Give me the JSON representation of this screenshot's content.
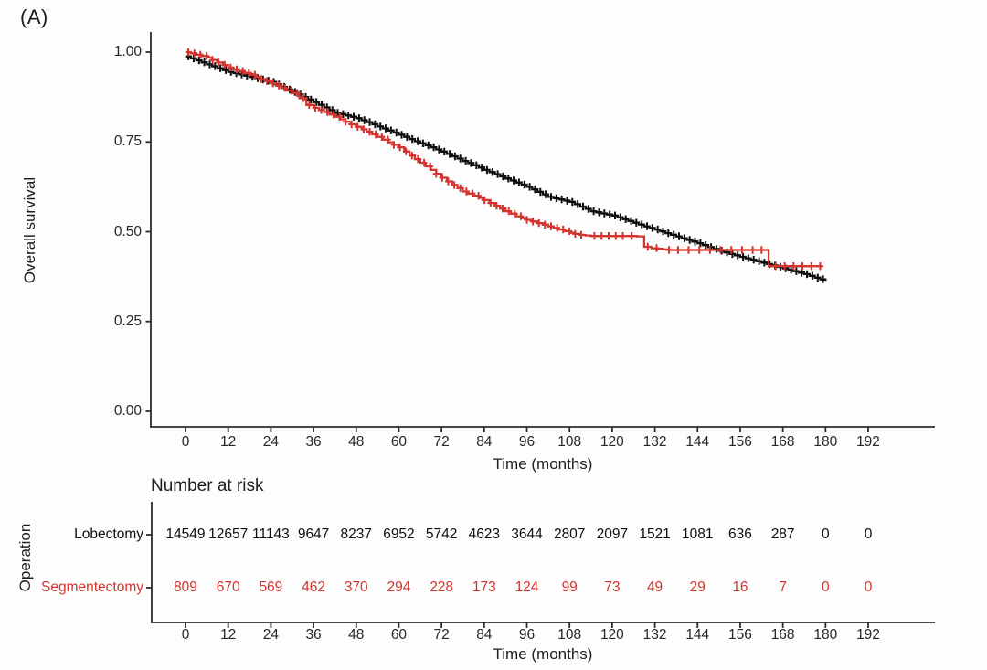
{
  "panel_label": "(A)",
  "colors": {
    "lobectomy": "#0e0e0e",
    "segmentectomy": "#d4342e",
    "axis": "#2c2c2c",
    "text": "#1e1e1e"
  },
  "chart_data": {
    "type": "line",
    "subtype": "kaplan_meier_step",
    "title": "",
    "xlabel": "Time (months)",
    "ylabel": "Overall survival",
    "xlim": [
      0,
      192
    ],
    "ylim": [
      0.0,
      1.0
    ],
    "grid": false,
    "legend_position": "none",
    "xticks": [
      0,
      12,
      24,
      36,
      48,
      60,
      72,
      84,
      96,
      108,
      120,
      132,
      144,
      156,
      168,
      180,
      192
    ],
    "yticks": [
      "0.00",
      "0.25",
      "0.50",
      "0.75",
      "1.00"
    ],
    "series": [
      {
        "name": "Lobectomy",
        "color": "#0e0e0e",
        "points": [
          [
            0,
            0.988
          ],
          [
            3,
            0.977
          ],
          [
            6,
            0.966
          ],
          [
            9,
            0.955
          ],
          [
            12,
            0.945
          ],
          [
            15,
            0.938
          ],
          [
            18,
            0.931
          ],
          [
            21,
            0.924
          ],
          [
            24,
            0.917
          ],
          [
            27,
            0.903
          ],
          [
            30,
            0.889
          ],
          [
            33,
            0.875
          ],
          [
            36,
            0.861
          ],
          [
            39,
            0.846
          ],
          [
            42,
            0.831
          ],
          [
            45,
            0.824
          ],
          [
            48,
            0.816
          ],
          [
            51,
            0.805
          ],
          [
            54,
            0.793
          ],
          [
            57,
            0.782
          ],
          [
            60,
            0.77
          ],
          [
            63,
            0.758
          ],
          [
            66,
            0.746
          ],
          [
            69,
            0.735
          ],
          [
            72,
            0.723
          ],
          [
            75,
            0.71
          ],
          [
            78,
            0.697
          ],
          [
            81,
            0.685
          ],
          [
            84,
            0.672
          ],
          [
            87,
            0.66
          ],
          [
            90,
            0.648
          ],
          [
            93,
            0.637
          ],
          [
            96,
            0.625
          ],
          [
            99,
            0.611
          ],
          [
            102,
            0.597
          ],
          [
            105,
            0.59
          ],
          [
            108,
            0.583
          ],
          [
            111,
            0.57
          ],
          [
            114,
            0.557
          ],
          [
            117,
            0.551
          ],
          [
            120,
            0.545
          ],
          [
            123,
            0.535
          ],
          [
            126,
            0.525
          ],
          [
            129,
            0.515
          ],
          [
            132,
            0.506
          ],
          [
            135,
            0.496
          ],
          [
            138,
            0.487
          ],
          [
            141,
            0.477
          ],
          [
            144,
            0.468
          ],
          [
            147,
            0.457
          ],
          [
            150,
            0.447
          ],
          [
            153,
            0.438
          ],
          [
            156,
            0.43
          ],
          [
            159,
            0.422
          ],
          [
            162,
            0.414
          ],
          [
            165,
            0.406
          ],
          [
            168,
            0.398
          ],
          [
            171,
            0.39
          ],
          [
            174,
            0.382
          ],
          [
            177,
            0.372
          ],
          [
            180,
            0.363
          ]
        ],
        "censor": {
          "start": 0.8,
          "end": 179.4,
          "step": 1.5,
          "extra": []
        }
      },
      {
        "name": "Segmentectomy",
        "color": "#d4342e",
        "points": [
          [
            0,
            1.0
          ],
          [
            3,
            0.993
          ],
          [
            6,
            0.985
          ],
          [
            9,
            0.971
          ],
          [
            12,
            0.957
          ],
          [
            15,
            0.947
          ],
          [
            18,
            0.937
          ],
          [
            21,
            0.925
          ],
          [
            24,
            0.913
          ],
          [
            27,
            0.9
          ],
          [
            30,
            0.886
          ],
          [
            32,
            0.872
          ],
          [
            34,
            0.853
          ],
          [
            36,
            0.845
          ],
          [
            39,
            0.833
          ],
          [
            42,
            0.82
          ],
          [
            45,
            0.806
          ],
          [
            48,
            0.792
          ],
          [
            51,
            0.778
          ],
          [
            54,
            0.764
          ],
          [
            57,
            0.749
          ],
          [
            60,
            0.735
          ],
          [
            63,
            0.712
          ],
          [
            66,
            0.692
          ],
          [
            69,
            0.672
          ],
          [
            72,
            0.65
          ],
          [
            75,
            0.63
          ],
          [
            78,
            0.612
          ],
          [
            81,
            0.6
          ],
          [
            84,
            0.588
          ],
          [
            87,
            0.572
          ],
          [
            90,
            0.557
          ],
          [
            93,
            0.543
          ],
          [
            96,
            0.533
          ],
          [
            99,
            0.524
          ],
          [
            102,
            0.515
          ],
          [
            105,
            0.506
          ],
          [
            108,
            0.497
          ],
          [
            111,
            0.491
          ],
          [
            114,
            0.488
          ],
          [
            127,
            0.487
          ],
          [
            129,
            0.458
          ],
          [
            131,
            0.454
          ],
          [
            136,
            0.449
          ],
          [
            163,
            0.449
          ],
          [
            164,
            0.404
          ],
          [
            179,
            0.404
          ]
        ],
        "censor": {
          "start": 0.8,
          "end": 112,
          "step": 1.7,
          "extra": [
            115,
            117,
            119,
            121,
            123,
            125.5,
            130,
            132.5,
            136,
            138.5,
            141.5,
            144.5,
            147.5,
            150.5,
            153.5,
            156.5,
            159.5,
            162,
            166,
            168.5,
            171,
            173.5,
            176,
            178.5
          ]
        }
      }
    ]
  },
  "risk_table": {
    "title": "Number at risk",
    "ylabel": "Operation",
    "xlabel": "Time (months)",
    "xticks": [
      0,
      12,
      24,
      36,
      48,
      60,
      72,
      84,
      96,
      108,
      120,
      132,
      144,
      156,
      168,
      180,
      192
    ],
    "rows": [
      {
        "label": "Lobectomy",
        "color": "#0e0e0e",
        "values": [
          "14549",
          "12657",
          "11143",
          "9647",
          "8237",
          "6952",
          "5742",
          "4623",
          "3644",
          "2807",
          "2097",
          "1521",
          "1081",
          "636",
          "287",
          "0",
          "0"
        ]
      },
      {
        "label": "Segmentectomy",
        "color": "#d4342e",
        "values": [
          "809",
          "670",
          "569",
          "462",
          "370",
          "294",
          "228",
          "173",
          "124",
          "99",
          "73",
          "49",
          "29",
          "16",
          "7",
          "0",
          "0"
        ]
      }
    ]
  }
}
